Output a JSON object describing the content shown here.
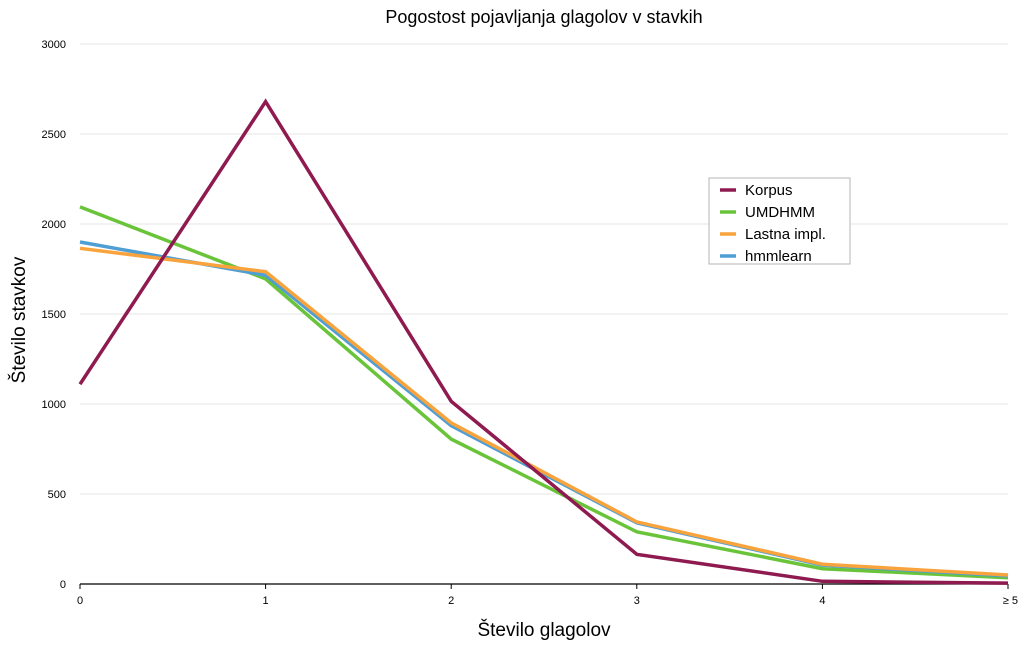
{
  "chart_data": {
    "type": "line",
    "title": "Pogostost pojavljanja glagolov v stavkih",
    "xlabel": "Število glagolov",
    "ylabel": "Število stavkov",
    "categories": [
      "0",
      "1",
      "2",
      "3",
      "4",
      "≥ 5"
    ],
    "ylim": [
      0,
      3000
    ],
    "yticks": [
      "0",
      "500",
      "1000",
      "1500",
      "2000",
      "2500",
      "3000"
    ],
    "grid": true,
    "legend_position": "right",
    "series": [
      {
        "name": "Korpus",
        "color": "#8e1a50",
        "values": [
          1110,
          2680,
          1015,
          165,
          15,
          5
        ]
      },
      {
        "name": "UMDHMM",
        "color": "#6ac43a",
        "values": [
          2095,
          1695,
          805,
          290,
          85,
          35
        ]
      },
      {
        "name": "Lastna impl.",
        "color": "#f9a33d",
        "values": [
          1865,
          1735,
          895,
          345,
          110,
          50
        ]
      },
      {
        "name": "hmmlearn",
        "color": "#4f9ed4",
        "values": [
          1900,
          1715,
          880,
          340,
          105,
          45
        ]
      }
    ],
    "draw_order": [
      1,
      3,
      2,
      0
    ]
  }
}
